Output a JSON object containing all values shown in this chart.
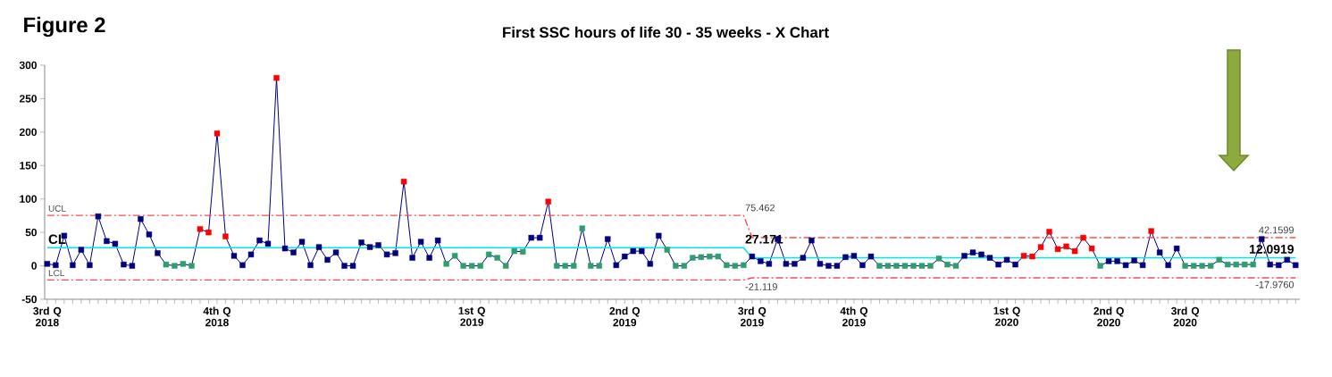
{
  "chart_data": {
    "type": "line",
    "title": "First SSC hours of life  30 - 35 weeks - X Chart",
    "annotations": [
      "Figure 2"
    ],
    "categories": [
      "3rd Q 2018",
      null,
      null,
      null,
      null,
      null,
      null,
      null,
      null,
      null,
      null,
      null,
      null,
      null,
      null,
      null,
      null,
      null,
      null,
      null,
      "4th Q 2018",
      null,
      null,
      null,
      null,
      null,
      null,
      null,
      null,
      null,
      null,
      null,
      null,
      null,
      null,
      null,
      null,
      null,
      null,
      null,
      null,
      null,
      null,
      null,
      null,
      null,
      null,
      null,
      null,
      null,
      "1st Q 2019",
      null,
      null,
      null,
      null,
      null,
      null,
      null,
      null,
      null,
      null,
      null,
      null,
      null,
      null,
      null,
      null,
      null,
      "2nd Q 2019",
      null,
      null,
      null,
      null,
      null,
      null,
      null,
      null,
      null,
      null,
      null,
      null,
      null,
      null,
      "3rd Q 2019",
      null,
      null,
      null,
      null,
      null,
      null,
      null,
      null,
      null,
      null,
      null,
      "4th Q 2019",
      null,
      null,
      null,
      null,
      null,
      null,
      null,
      null,
      null,
      null,
      null,
      null,
      null,
      null,
      null,
      null,
      null,
      "1st Q 2020",
      null,
      null,
      null,
      null,
      null,
      null,
      null,
      null,
      null,
      null,
      null,
      "2nd Q 2020",
      null,
      null,
      null,
      null,
      null,
      null,
      null,
      null,
      "3rd Q 2020",
      null,
      null,
      null,
      null,
      null,
      null,
      null,
      null,
      null,
      null,
      null,
      null,
      null
    ],
    "ylim": [
      -50,
      300
    ],
    "yticks": [
      -50,
      0,
      50,
      100,
      150,
      200,
      250,
      300
    ],
    "legend": false,
    "grid": false,
    "series": [
      {
        "color": "#000080",
        "marker": "square",
        "line_style": "solid",
        "values": [
          3,
          1,
          45,
          1,
          24,
          1,
          74,
          37,
          33,
          2,
          0,
          70,
          47,
          19,
          2,
          0,
          3,
          0,
          55,
          50,
          198,
          44,
          15,
          1,
          17,
          38,
          33,
          281,
          26,
          20,
          36,
          1,
          28,
          9,
          20,
          0,
          0,
          35,
          28,
          31,
          17,
          19,
          126,
          12,
          36,
          12,
          38,
          3,
          15,
          0,
          0,
          0,
          17,
          12,
          0,
          22,
          21,
          42,
          42,
          96,
          0,
          0,
          0,
          56,
          0,
          0,
          40,
          1,
          14,
          22,
          22,
          3,
          45,
          24,
          0,
          0,
          12,
          13,
          14,
          14,
          1,
          0,
          1,
          14,
          7,
          3,
          40,
          3,
          3,
          12,
          38,
          3,
          0,
          0,
          13,
          15,
          1,
          14,
          0,
          0,
          0,
          0,
          0,
          0,
          0,
          11,
          2,
          0,
          15,
          20,
          17,
          12,
          2,
          9,
          2,
          15,
          14,
          28,
          51,
          25,
          29,
          22,
          42,
          26,
          0,
          7,
          7,
          1,
          8,
          1,
          52,
          20,
          1,
          26,
          0,
          0,
          0,
          0,
          9,
          2,
          2,
          2,
          2,
          40,
          2,
          1,
          9,
          1
        ],
        "colors": [
          "#000080",
          "#000080",
          "#000080",
          "#000080",
          "#000080",
          "#000080",
          "#000080",
          "#000080",
          "#000080",
          "#000080",
          "#000080",
          "#000080",
          "#000080",
          "#000080",
          "#2e9e6e",
          "#2e9e6e",
          "#2e9e6e",
          "#2e9e6e",
          "#ff0000",
          "#ff0000",
          "#ff0000",
          "#ff0000",
          "#000080",
          "#000080",
          "#000080",
          "#000080",
          "#000080",
          "#ff0000",
          "#000080",
          "#000080",
          "#000080",
          "#000080",
          "#000080",
          "#000080",
          "#000080",
          "#000080",
          "#000080",
          "#000080",
          "#000080",
          "#000080",
          "#000080",
          "#000080",
          "#ff0000",
          "#000080",
          "#000080",
          "#000080",
          "#000080",
          "#2e9e6e",
          "#2e9e6e",
          "#2e9e6e",
          "#2e9e6e",
          "#2e9e6e",
          "#2e9e6e",
          "#2e9e6e",
          "#2e9e6e",
          "#2e9e6e",
          "#2e9e6e",
          "#000080",
          "#000080",
          "#ff0000",
          "#2e9e6e",
          "#2e9e6e",
          "#2e9e6e",
          "#2e9e6e",
          "#2e9e6e",
          "#2e9e6e",
          "#000080",
          "#000080",
          "#000080",
          "#000080",
          "#000080",
          "#000080",
          "#000080",
          "#2e9e6e",
          "#2e9e6e",
          "#2e9e6e",
          "#2e9e6e",
          "#2e9e6e",
          "#2e9e6e",
          "#2e9e6e",
          "#2e9e6e",
          "#2e9e6e",
          "#2e9e6e",
          "#000080",
          "#000080",
          "#000080",
          "#000080",
          "#000080",
          "#000080",
          "#000080",
          "#000080",
          "#000080",
          "#000080",
          "#000080",
          "#000080",
          "#000080",
          "#000080",
          "#000080",
          "#2e9e6e",
          "#2e9e6e",
          "#2e9e6e",
          "#2e9e6e",
          "#2e9e6e",
          "#2e9e6e",
          "#2e9e6e",
          "#2e9e6e",
          "#2e9e6e",
          "#2e9e6e",
          "#000080",
          "#000080",
          "#000080",
          "#000080",
          "#000080",
          "#000080",
          "#000080",
          "#ff0000",
          "#ff0000",
          "#ff0000",
          "#ff0000",
          "#ff0000",
          "#ff0000",
          "#ff0000",
          "#ff0000",
          "#ff0000",
          "#2e9e6e",
          "#000080",
          "#000080",
          "#000080",
          "#000080",
          "#000080",
          "#ff0000",
          "#000080",
          "#000080",
          "#000080",
          "#2e9e6e",
          "#2e9e6e",
          "#2e9e6e",
          "#2e9e6e",
          "#2e9e6e",
          "#2e9e6e",
          "#2e9e6e",
          "#2e9e6e",
          "#2e9e6e",
          "#000080",
          "#000080",
          "#000080",
          "#000080",
          "#000080"
        ]
      },
      {
        "name": "UCL",
        "color": "#ff4b4b",
        "marker": "none",
        "line_style": "dashed",
        "values": [
          75.462,
          75.462,
          75.462,
          75.462,
          75.462,
          75.462,
          75.462,
          75.462,
          75.462,
          75.462,
          75.462,
          75.462,
          75.462,
          75.462,
          75.462,
          75.462,
          75.462,
          75.462,
          75.462,
          75.462,
          75.462,
          75.462,
          75.462,
          75.462,
          75.462,
          75.462,
          75.462,
          75.462,
          75.462,
          75.462,
          75.462,
          75.462,
          75.462,
          75.462,
          75.462,
          75.462,
          75.462,
          75.462,
          75.462,
          75.462,
          75.462,
          75.462,
          75.462,
          75.462,
          75.462,
          75.462,
          75.462,
          75.462,
          75.462,
          75.462,
          75.462,
          75.462,
          75.462,
          75.462,
          75.462,
          75.462,
          75.462,
          75.462,
          75.462,
          75.462,
          75.462,
          75.462,
          75.462,
          75.462,
          75.462,
          75.462,
          75.462,
          75.462,
          75.462,
          75.462,
          75.462,
          75.462,
          75.462,
          75.462,
          75.462,
          75.462,
          75.462,
          75.462,
          75.462,
          75.462,
          75.462,
          75.462,
          75.462,
          42.1599,
          42.1599,
          42.1599,
          42.1599,
          42.1599,
          42.1599,
          42.1599,
          42.1599,
          42.1599,
          42.1599,
          42.1599,
          42.1599,
          42.1599,
          42.1599,
          42.1599,
          42.1599,
          42.1599,
          42.1599,
          42.1599,
          42.1599,
          42.1599,
          42.1599,
          42.1599,
          42.1599,
          42.1599,
          42.1599,
          42.1599,
          42.1599,
          42.1599,
          42.1599,
          42.1599,
          42.1599,
          42.1599,
          42.1599,
          42.1599,
          42.1599,
          42.1599,
          42.1599,
          42.1599,
          42.1599,
          42.1599,
          42.1599,
          42.1599,
          42.1599,
          42.1599,
          42.1599,
          42.1599,
          42.1599,
          42.1599,
          42.1599,
          42.1599,
          42.1599,
          42.1599,
          42.1599,
          42.1599,
          42.1599,
          42.1599,
          42.1599,
          42.1599,
          42.1599,
          42.1599,
          42.1599,
          42.1599,
          42.1599,
          42.1599
        ],
        "value_labels": [
          null,
          null,
          null,
          null,
          null,
          null,
          null,
          null,
          null,
          null,
          null,
          null,
          null,
          null,
          null,
          null,
          null,
          null,
          null,
          null,
          null,
          null,
          null,
          null,
          null,
          null,
          null,
          null,
          null,
          null,
          null,
          null,
          null,
          null,
          null,
          null,
          null,
          null,
          null,
          null,
          null,
          null,
          null,
          null,
          null,
          null,
          null,
          null,
          null,
          null,
          null,
          null,
          null,
          null,
          null,
          null,
          null,
          null,
          null,
          null,
          null,
          null,
          null,
          null,
          null,
          null,
          null,
          null,
          null,
          null,
          null,
          null,
          null,
          null,
          null,
          null,
          null,
          null,
          null,
          null,
          null,
          null,
          "75.462",
          null,
          null,
          null,
          null,
          null,
          null,
          null,
          null,
          null,
          null,
          null,
          null,
          null,
          null,
          null,
          null,
          null,
          null,
          null,
          null,
          null,
          null,
          null,
          null,
          null,
          null,
          null,
          null,
          null,
          null,
          null,
          null,
          null,
          null,
          null,
          null,
          null,
          null,
          null,
          null,
          null,
          null,
          null,
          null,
          null,
          null,
          null,
          null,
          null,
          null,
          null,
          null,
          null,
          null,
          null,
          null,
          null,
          null,
          null,
          null,
          null,
          null,
          null,
          null,
          "42.1599"
        ]
      },
      {
        "name": "CL",
        "color": "#00e5ee",
        "marker": "none",
        "line_style": "solid",
        "values": [
          27.171,
          27.171,
          27.171,
          27.171,
          27.171,
          27.171,
          27.171,
          27.171,
          27.171,
          27.171,
          27.171,
          27.171,
          27.171,
          27.171,
          27.171,
          27.171,
          27.171,
          27.171,
          27.171,
          27.171,
          27.171,
          27.171,
          27.171,
          27.171,
          27.171,
          27.171,
          27.171,
          27.171,
          27.171,
          27.171,
          27.171,
          27.171,
          27.171,
          27.171,
          27.171,
          27.171,
          27.171,
          27.171,
          27.171,
          27.171,
          27.171,
          27.171,
          27.171,
          27.171,
          27.171,
          27.171,
          27.171,
          27.171,
          27.171,
          27.171,
          27.171,
          27.171,
          27.171,
          27.171,
          27.171,
          27.171,
          27.171,
          27.171,
          27.171,
          27.171,
          27.171,
          27.171,
          27.171,
          27.171,
          27.171,
          27.171,
          27.171,
          27.171,
          27.171,
          27.171,
          27.171,
          27.171,
          27.171,
          27.171,
          27.171,
          27.171,
          27.171,
          27.171,
          27.171,
          27.171,
          27.171,
          27.171,
          27.171,
          12.0919,
          12.0919,
          12.0919,
          12.0919,
          12.0919,
          12.0919,
          12.0919,
          12.0919,
          12.0919,
          12.0919,
          12.0919,
          12.0919,
          12.0919,
          12.0919,
          12.0919,
          12.0919,
          12.0919,
          12.0919,
          12.0919,
          12.0919,
          12.0919,
          12.0919,
          12.0919,
          12.0919,
          12.0919,
          12.0919,
          12.0919,
          12.0919,
          12.0919,
          12.0919,
          12.0919,
          12.0919,
          12.0919,
          12.0919,
          12.0919,
          12.0919,
          12.0919,
          12.0919,
          12.0919,
          12.0919,
          12.0919,
          12.0919,
          12.0919,
          12.0919,
          12.0919,
          12.0919,
          12.0919,
          12.0919,
          12.0919,
          12.0919,
          12.0919,
          12.0919,
          12.0919,
          12.0919,
          12.0919,
          12.0919,
          12.0919,
          12.0919,
          12.0919,
          12.0919,
          12.0919,
          12.0919,
          12.0919,
          12.0919,
          12.0919
        ],
        "value_labels": [
          null,
          null,
          null,
          null,
          null,
          null,
          null,
          null,
          null,
          null,
          null,
          null,
          null,
          null,
          null,
          null,
          null,
          null,
          null,
          null,
          null,
          null,
          null,
          null,
          null,
          null,
          null,
          null,
          null,
          null,
          null,
          null,
          null,
          null,
          null,
          null,
          null,
          null,
          null,
          null,
          null,
          null,
          null,
          null,
          null,
          null,
          null,
          null,
          null,
          null,
          null,
          null,
          null,
          null,
          null,
          null,
          null,
          null,
          null,
          null,
          null,
          null,
          null,
          null,
          null,
          null,
          null,
          null,
          null,
          null,
          null,
          null,
          null,
          null,
          null,
          null,
          null,
          null,
          null,
          null,
          null,
          null,
          "27.171",
          null,
          null,
          null,
          null,
          null,
          null,
          null,
          null,
          null,
          null,
          null,
          null,
          null,
          null,
          null,
          null,
          null,
          null,
          null,
          null,
          null,
          null,
          null,
          null,
          null,
          null,
          null,
          null,
          null,
          null,
          null,
          null,
          null,
          null,
          null,
          null,
          null,
          null,
          null,
          null,
          null,
          null,
          null,
          null,
          null,
          null,
          null,
          null,
          null,
          null,
          null,
          null,
          null,
          null,
          null,
          null,
          null,
          null,
          null,
          null,
          null,
          null,
          null,
          null,
          "12.0919"
        ]
      },
      {
        "name": "LCL",
        "color": "#ff4b4b",
        "marker": "none",
        "line_style": "dashed",
        "values": [
          -21.119,
          -21.119,
          -21.119,
          -21.119,
          -21.119,
          -21.119,
          -21.119,
          -21.119,
          -21.119,
          -21.119,
          -21.119,
          -21.119,
          -21.119,
          -21.119,
          -21.119,
          -21.119,
          -21.119,
          -21.119,
          -21.119,
          -21.119,
          -21.119,
          -21.119,
          -21.119,
          -21.119,
          -21.119,
          -21.119,
          -21.119,
          -21.119,
          -21.119,
          -21.119,
          -21.119,
          -21.119,
          -21.119,
          -21.119,
          -21.119,
          -21.119,
          -21.119,
          -21.119,
          -21.119,
          -21.119,
          -21.119,
          -21.119,
          -21.119,
          -21.119,
          -21.119,
          -21.119,
          -21.119,
          -21.119,
          -21.119,
          -21.119,
          -21.119,
          -21.119,
          -21.119,
          -21.119,
          -21.119,
          -21.119,
          -21.119,
          -21.119,
          -21.119,
          -21.119,
          -21.119,
          -21.119,
          -21.119,
          -21.119,
          -21.119,
          -21.119,
          -21.119,
          -21.119,
          -21.119,
          -21.119,
          -21.119,
          -21.119,
          -21.119,
          -21.119,
          -21.119,
          -21.119,
          -21.119,
          -21.119,
          -21.119,
          -21.119,
          -21.119,
          -21.119,
          -21.119,
          -17.976,
          -17.976,
          -17.976,
          -17.976,
          -17.976,
          -17.976,
          -17.976,
          -17.976,
          -17.976,
          -17.976,
          -17.976,
          -17.976,
          -17.976,
          -17.976,
          -17.976,
          -17.976,
          -17.976,
          -17.976,
          -17.976,
          -17.976,
          -17.976,
          -17.976,
          -17.976,
          -17.976,
          -17.976,
          -17.976,
          -17.976,
          -17.976,
          -17.976,
          -17.976,
          -17.976,
          -17.976,
          -17.976,
          -17.976,
          -17.976,
          -17.976,
          -17.976,
          -17.976,
          -17.976,
          -17.976,
          -17.976,
          -17.976,
          -17.976,
          -17.976,
          -17.976,
          -17.976,
          -17.976,
          -17.976,
          -17.976,
          -17.976,
          -17.976,
          -17.976,
          -17.976,
          -17.976,
          -17.976,
          -17.976,
          -17.976,
          -17.976,
          -17.976,
          -17.976,
          -17.976,
          -17.976,
          -17.976,
          -17.976,
          -17.976
        ],
        "value_labels": [
          null,
          null,
          null,
          null,
          null,
          null,
          null,
          null,
          null,
          null,
          null,
          null,
          null,
          null,
          null,
          null,
          null,
          null,
          null,
          null,
          null,
          null,
          null,
          null,
          null,
          null,
          null,
          null,
          null,
          null,
          null,
          null,
          null,
          null,
          null,
          null,
          null,
          null,
          null,
          null,
          null,
          null,
          null,
          null,
          null,
          null,
          null,
          null,
          null,
          null,
          null,
          null,
          null,
          null,
          null,
          null,
          null,
          null,
          null,
          null,
          null,
          null,
          null,
          null,
          null,
          null,
          null,
          null,
          null,
          null,
          null,
          null,
          null,
          null,
          null,
          null,
          null,
          null,
          null,
          null,
          null,
          null,
          "-21.119",
          null,
          null,
          null,
          null,
          null,
          null,
          null,
          null,
          null,
          null,
          null,
          null,
          null,
          null,
          null,
          null,
          null,
          null,
          null,
          null,
          null,
          null,
          null,
          null,
          null,
          null,
          null,
          null,
          null,
          null,
          null,
          null,
          null,
          null,
          null,
          null,
          null,
          null,
          null,
          null,
          null,
          null,
          null,
          null,
          null,
          null,
          null,
          null,
          null,
          null,
          null,
          null,
          null,
          null,
          null,
          null,
          null,
          null,
          null,
          null,
          null,
          null,
          null,
          null,
          "-17.9760"
        ]
      }
    ]
  }
}
